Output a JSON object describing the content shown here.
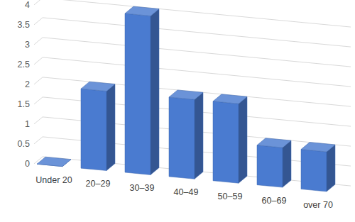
{
  "chart_data": {
    "type": "bar",
    "categories": [
      "Under 20",
      "20–29",
      "30–39",
      "40–49",
      "50–59",
      "60–69",
      "over 70"
    ],
    "values": [
      0,
      2,
      4,
      2,
      2,
      1,
      1
    ],
    "color": "#4a7bd0",
    "ylim": [
      0,
      4
    ],
    "yticks": [
      0,
      0.5,
      1,
      1.5,
      2,
      2.5,
      3,
      3.5,
      4
    ],
    "grid": true
  }
}
